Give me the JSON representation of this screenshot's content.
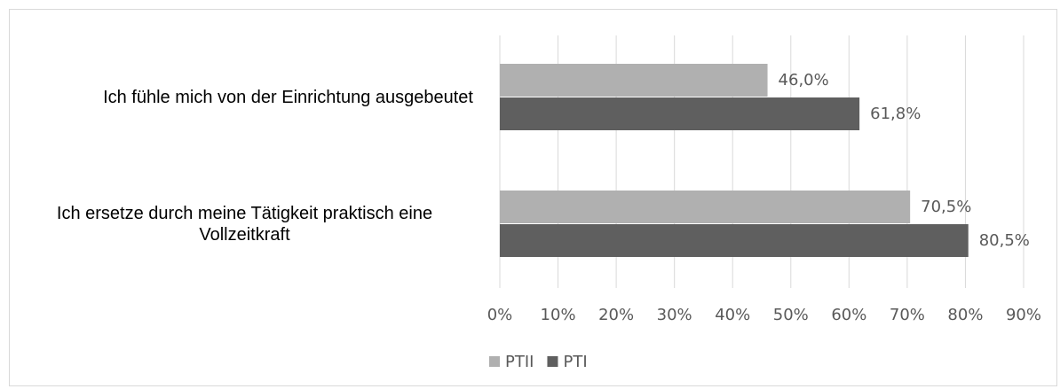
{
  "chart_data": {
    "type": "barh",
    "categories": [
      "Ich fühle mich von der Einrichtung ausgebeutet",
      "Ich ersetze durch meine Tätigkeit praktisch eine Vollzeitkraft"
    ],
    "series": [
      {
        "name": "PTII",
        "color": "#b0b0b0",
        "values": [
          46.0,
          70.5
        ],
        "value_labels": [
          "46,0%",
          "70,5%"
        ]
      },
      {
        "name": "PTI",
        "color": "#5f5f5f",
        "values": [
          61.8,
          80.5
        ],
        "value_labels": [
          "61,8%",
          "80,5%"
        ]
      }
    ],
    "xlim": [
      0,
      90
    ],
    "xticks": [
      {
        "value": 0,
        "label": "0%"
      },
      {
        "value": 10,
        "label": "10%"
      },
      {
        "value": 20,
        "label": "20%"
      },
      {
        "value": 30,
        "label": "30%"
      },
      {
        "value": 40,
        "label": "40%"
      },
      {
        "value": 50,
        "label": "50%"
      },
      {
        "value": 60,
        "label": "60%"
      },
      {
        "value": 70,
        "label": "70%"
      },
      {
        "value": 80,
        "label": "80%"
      },
      {
        "value": 90,
        "label": "90%"
      }
    ],
    "grid": true,
    "legend": "bottom"
  }
}
